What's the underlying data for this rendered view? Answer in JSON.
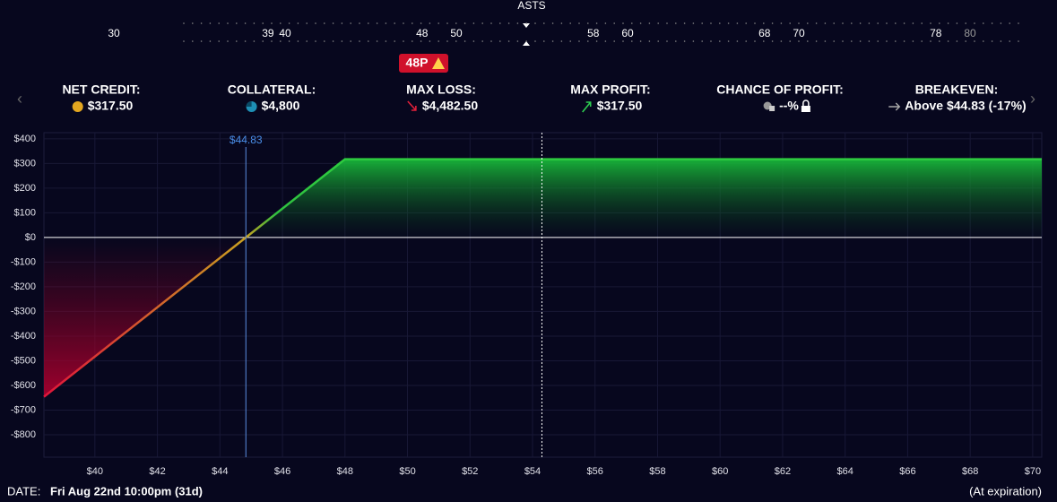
{
  "header": {
    "symbol": "ASTS",
    "strikes": [
      30,
      39,
      40,
      48,
      50,
      58,
      60,
      68,
      70,
      78,
      80
    ],
    "badge": "48P"
  },
  "stats": [
    {
      "label": "NET CREDIT:",
      "value": "$317.50"
    },
    {
      "label": "COLLATERAL:",
      "value": "$4,800"
    },
    {
      "label": "MAX LOSS:",
      "value": "$4,482.50"
    },
    {
      "label": "MAX PROFIT:",
      "value": "$317.50"
    },
    {
      "label": "CHANCE OF PROFIT:",
      "value": "--%"
    },
    {
      "label": "BREAKEVEN:",
      "value": "Above $44.83 (-17%)"
    }
  ],
  "chart_data": {
    "type": "line",
    "x": [
      38.37,
      44.83,
      48,
      70.29
    ],
    "values": [
      -646,
      0,
      317.5,
      317.5
    ],
    "breakeven": {
      "value": 44.83,
      "label": "$44.83"
    },
    "current_price": 54.3,
    "xlim": [
      38.37,
      70.29
    ],
    "ylim": [
      -891,
      425
    ],
    "xticks": [
      {
        "value": 40,
        "label": "$40"
      },
      {
        "value": 42,
        "label": "$42"
      },
      {
        "value": 44,
        "label": "$44"
      },
      {
        "value": 46,
        "label": "$46"
      },
      {
        "value": 48,
        "label": "$48"
      },
      {
        "value": 50,
        "label": "$50"
      },
      {
        "value": 52,
        "label": "$52"
      },
      {
        "value": 54,
        "label": "$54"
      },
      {
        "value": 56,
        "label": "$56"
      },
      {
        "value": 58,
        "label": "$58"
      },
      {
        "value": 60,
        "label": "$60"
      },
      {
        "value": 62,
        "label": "$62"
      },
      {
        "value": 64,
        "label": "$64"
      },
      {
        "value": 66,
        "label": "$66"
      },
      {
        "value": 68,
        "label": "$68"
      },
      {
        "value": 70,
        "label": "$70"
      }
    ],
    "yticks": [
      {
        "value": 400,
        "label": "$400"
      },
      {
        "value": 300,
        "label": "$300"
      },
      {
        "value": 200,
        "label": "$200"
      },
      {
        "value": 100,
        "label": "$100"
      },
      {
        "value": 0,
        "label": "$0"
      },
      {
        "value": -100,
        "label": "-$100"
      },
      {
        "value": -200,
        "label": "-$200"
      },
      {
        "value": -300,
        "label": "-$300"
      },
      {
        "value": -400,
        "label": "-$400"
      },
      {
        "value": -500,
        "label": "-$500"
      },
      {
        "value": -600,
        "label": "-$600"
      },
      {
        "value": -700,
        "label": "-$700"
      },
      {
        "value": -800,
        "label": "-$800"
      }
    ],
    "grid": true
  },
  "footer": {
    "date_label": "DATE:",
    "date": "Fri Aug 22nd 10:00pm (31d)",
    "note": "(At expiration)"
  }
}
